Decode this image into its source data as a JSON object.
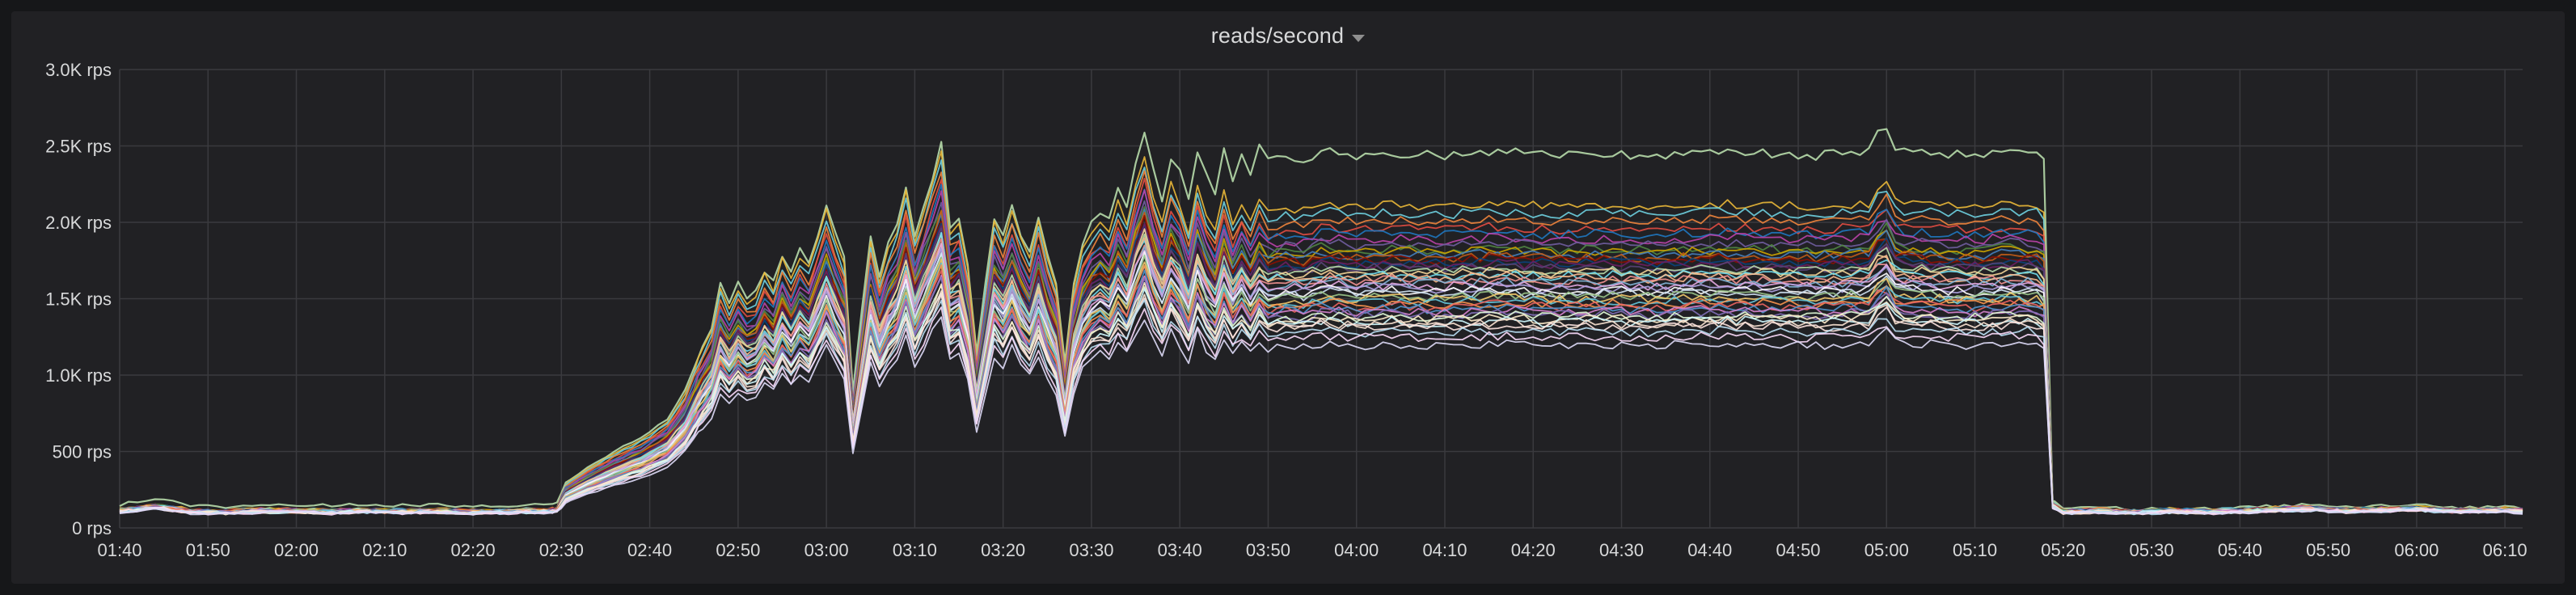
{
  "panel": {
    "title": "reads/second"
  },
  "chart_data": {
    "type": "line",
    "title": "reads/second",
    "xlabel": "",
    "ylabel": "",
    "grid": true,
    "ylim": [
      0,
      3000
    ],
    "y_ticks": [
      {
        "value": 0,
        "label": "0 rps"
      },
      {
        "value": 500,
        "label": "500 rps"
      },
      {
        "value": 1000,
        "label": "1.0K rps"
      },
      {
        "value": 1500,
        "label": "1.5K rps"
      },
      {
        "value": 2000,
        "label": "2.0K rps"
      },
      {
        "value": 2500,
        "label": "2.5K rps"
      },
      {
        "value": 3000,
        "label": "3.0K rps"
      }
    ],
    "x_ticks": [
      "01:40",
      "01:50",
      "02:00",
      "02:10",
      "02:20",
      "02:30",
      "02:40",
      "02:50",
      "03:00",
      "03:10",
      "03:20",
      "03:30",
      "03:40",
      "03:50",
      "04:00",
      "04:10",
      "04:20",
      "04:30",
      "04:40",
      "04:50",
      "05:00",
      "05:10",
      "05:20",
      "05:30",
      "05:40",
      "05:50",
      "06:00",
      "06:10"
    ],
    "x_tick_minutes": [
      100,
      110,
      120,
      130,
      140,
      150,
      160,
      170,
      180,
      190,
      200,
      210,
      220,
      230,
      240,
      250,
      260,
      270,
      280,
      290,
      300,
      310,
      320,
      330,
      340,
      350,
      360,
      370
    ],
    "xlim_minutes": [
      100,
      372
    ],
    "series_palette": [
      "#7eb26d",
      "#eab839",
      "#6ed0e0",
      "#ef843c",
      "#e24d42",
      "#1f78c1",
      "#ba43a9",
      "#705da0",
      "#508642",
      "#cca300",
      "#447ebc",
      "#c15c17",
      "#890f02",
      "#0a437c",
      "#6d1f62",
      "#584477",
      "#b7dbab",
      "#f4d598",
      "#70dbed",
      "#f9ba8f",
      "#f29191",
      "#82b5d8",
      "#e5a8e2",
      "#aea2e0",
      "#ffffff",
      "#cfe2f3",
      "#9ac48a",
      "#f2c96d",
      "#65c5db",
      "#f9934e",
      "#ea6460",
      "#5195ce",
      "#d683ce",
      "#806eb7",
      "#e0f9d7",
      "#fceaca",
      "#cffaff",
      "#f9e2d2",
      "#fce2de",
      "#badff4",
      "#f9d9f9",
      "#dedaf7"
    ],
    "shape_points": [
      [
        100,
        120
      ],
      [
        104,
        150
      ],
      [
        108,
        115
      ],
      [
        112,
        110
      ],
      [
        116,
        120
      ],
      [
        120,
        118
      ],
      [
        124,
        112
      ],
      [
        128,
        120
      ],
      [
        132,
        115
      ],
      [
        136,
        118
      ],
      [
        140,
        112
      ],
      [
        144,
        115
      ],
      [
        148,
        118
      ],
      [
        149.5,
        125
      ],
      [
        150.5,
        230
      ],
      [
        153,
        310
      ],
      [
        156,
        390
      ],
      [
        159,
        460
      ],
      [
        162,
        560
      ],
      [
        164,
        700
      ],
      [
        165.5,
        880
      ],
      [
        167,
        1020
      ],
      [
        168,
        1250
      ],
      [
        169,
        1150
      ],
      [
        170,
        1250
      ],
      [
        171,
        1180
      ],
      [
        172,
        1200
      ],
      [
        173,
        1320
      ],
      [
        174,
        1250
      ],
      [
        175,
        1400
      ],
      [
        176,
        1300
      ],
      [
        177,
        1420
      ],
      [
        178,
        1350
      ],
      [
        179,
        1500
      ],
      [
        180,
        1650
      ],
      [
        181,
        1500
      ],
      [
        182,
        1380
      ],
      [
        183,
        700
      ],
      [
        184,
        1100
      ],
      [
        185,
        1500
      ],
      [
        186,
        1300
      ],
      [
        187,
        1450
      ],
      [
        188,
        1550
      ],
      [
        189,
        1750
      ],
      [
        190,
        1500
      ],
      [
        191,
        1650
      ],
      [
        192,
        1800
      ],
      [
        193,
        1950
      ],
      [
        194,
        1550
      ],
      [
        195,
        1600
      ],
      [
        196,
        1350
      ],
      [
        197,
        900
      ],
      [
        198,
        1250
      ],
      [
        199,
        1600
      ],
      [
        200,
        1500
      ],
      [
        201,
        1650
      ],
      [
        202,
        1500
      ],
      [
        203,
        1400
      ],
      [
        204,
        1600
      ],
      [
        205,
        1400
      ],
      [
        206,
        1250
      ],
      [
        207,
        850
      ],
      [
        208,
        1250
      ],
      [
        209,
        1450
      ],
      [
        210,
        1550
      ],
      [
        211,
        1600
      ],
      [
        212,
        1550
      ],
      [
        213,
        1700
      ],
      [
        214,
        1600
      ],
      [
        215,
        1800
      ],
      [
        216,
        1950
      ],
      [
        217,
        1750
      ],
      [
        218,
        1600
      ],
      [
        219,
        1800
      ],
      [
        220,
        1700
      ],
      [
        221,
        1550
      ],
      [
        222,
        1800
      ],
      [
        223,
        1650
      ],
      [
        224,
        1550
      ],
      [
        225,
        1750
      ],
      [
        226,
        1600
      ],
      [
        227,
        1700
      ],
      [
        228,
        1600
      ],
      [
        229,
        1720
      ],
      [
        230,
        1650
      ],
      [
        232,
        1680
      ],
      [
        234,
        1660
      ],
      [
        236,
        1700
      ],
      [
        240,
        1680
      ],
      [
        244,
        1690
      ],
      [
        250,
        1680
      ],
      [
        256,
        1700
      ],
      [
        262,
        1680
      ],
      [
        268,
        1690
      ],
      [
        274,
        1680
      ],
      [
        280,
        1700
      ],
      [
        286,
        1690
      ],
      [
        292,
        1680
      ],
      [
        298,
        1700
      ],
      [
        299,
        1780
      ],
      [
        300,
        1820
      ],
      [
        301,
        1720
      ],
      [
        302,
        1700
      ],
      [
        306,
        1690
      ],
      [
        310,
        1680
      ],
      [
        314,
        1700
      ],
      [
        317,
        1690
      ],
      [
        317.8,
        1650
      ],
      [
        318.8,
        160
      ],
      [
        320,
        110
      ],
      [
        324,
        120
      ],
      [
        328,
        110
      ],
      [
        332,
        118
      ],
      [
        336,
        112
      ],
      [
        340,
        120
      ],
      [
        344,
        128
      ],
      [
        348,
        135
      ],
      [
        352,
        120
      ],
      [
        356,
        128
      ],
      [
        360,
        135
      ],
      [
        364,
        118
      ],
      [
        368,
        120
      ],
      [
        370,
        125
      ],
      [
        372,
        120
      ]
    ],
    "series": [
      {
        "values_factor": 1.45,
        "style": "outlier"
      },
      {
        "values_factor": 1.25
      },
      {
        "values_factor": 1.22
      },
      {
        "values_factor": 1.19
      },
      {
        "values_factor": 1.16
      },
      {
        "values_factor": 1.14
      },
      {
        "values_factor": 1.12
      },
      {
        "values_factor": 1.1
      },
      {
        "values_factor": 1.08
      },
      {
        "values_factor": 1.07
      },
      {
        "values_factor": 1.06
      },
      {
        "values_factor": 1.05
      },
      {
        "values_factor": 1.04
      },
      {
        "values_factor": 1.03
      },
      {
        "values_factor": 1.02
      },
      {
        "values_factor": 1.01
      },
      {
        "values_factor": 1.0
      },
      {
        "values_factor": 0.99
      },
      {
        "values_factor": 0.98
      },
      {
        "values_factor": 0.97
      },
      {
        "values_factor": 0.96
      },
      {
        "values_factor": 0.95
      },
      {
        "values_factor": 0.94
      },
      {
        "values_factor": 0.93
      },
      {
        "values_factor": 0.92
      },
      {
        "values_factor": 0.91
      },
      {
        "values_factor": 0.9
      },
      {
        "values_factor": 0.89
      },
      {
        "values_factor": 0.88
      },
      {
        "values_factor": 0.87
      },
      {
        "values_factor": 0.86
      },
      {
        "values_factor": 0.85
      },
      {
        "values_factor": 0.84
      },
      {
        "values_factor": 0.83
      },
      {
        "values_factor": 0.82
      },
      {
        "values_factor": 0.81
      },
      {
        "values_factor": 0.8
      },
      {
        "values_factor": 0.79
      },
      {
        "values_factor": 0.78
      },
      {
        "values_factor": 0.76
      },
      {
        "values_factor": 0.74
      },
      {
        "values_factor": 0.71
      }
    ]
  }
}
